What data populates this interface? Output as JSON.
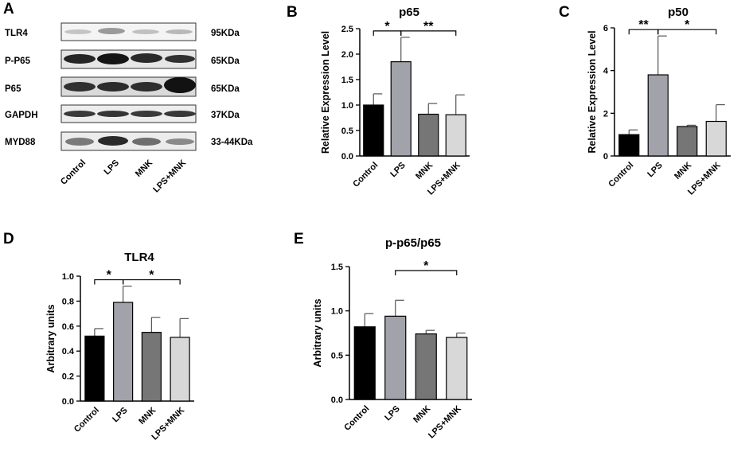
{
  "panels": {
    "A": "A",
    "B": "B",
    "C": "C",
    "D": "D",
    "E": "E"
  },
  "blot": {
    "proteins": [
      {
        "name": "TLR4",
        "size": "95KDa"
      },
      {
        "name": "P-P65",
        "size": "65KDa"
      },
      {
        "name": "P65",
        "size": "65KDa"
      },
      {
        "name": "GAPDH",
        "size": "37KDa"
      },
      {
        "name": "MYD88",
        "size": "33-44KDa"
      }
    ],
    "lanes": [
      "Control",
      "LPS",
      "MNK",
      "LPS+MNK"
    ]
  },
  "colors": {
    "Control": "#000000",
    "LPS": "#a2a2aa",
    "MNK": "#767676",
    "LPS+MNK": "#d8d8d8"
  },
  "chart_data": [
    {
      "id": "B",
      "type": "bar",
      "title": "p65",
      "ylabel": "Relative  Expression Level",
      "xlabel": "",
      "categories": [
        "Control",
        "LPS",
        "MNK",
        "LPS+MNK"
      ],
      "values": [
        1.0,
        1.85,
        0.82,
        0.81
      ],
      "errors": [
        0.22,
        0.48,
        0.21,
        0.39
      ],
      "ylim": [
        0,
        2.5
      ],
      "yticks": [
        "0.0",
        "0.5",
        "1.0",
        "1.5",
        "2.0",
        "2.5"
      ],
      "significance": [
        {
          "from": 0,
          "to": 1,
          "label": "*"
        },
        {
          "from": 1,
          "to": 3,
          "label": "**"
        }
      ]
    },
    {
      "id": "C",
      "type": "bar",
      "title": "p50",
      "ylabel": "Relative  Expression Level",
      "xlabel": "",
      "categories": [
        "Control",
        "LPS",
        "MNK",
        "LPS+MNK"
      ],
      "values": [
        1.0,
        3.8,
        1.38,
        1.62
      ],
      "errors": [
        0.22,
        1.82,
        0.06,
        0.78
      ],
      "ylim": [
        0,
        6
      ],
      "yticks": [
        "0",
        "2",
        "4",
        "6"
      ],
      "significance": [
        {
          "from": 0,
          "to": 1,
          "label": "**"
        },
        {
          "from": 1,
          "to": 3,
          "label": "*"
        }
      ]
    },
    {
      "id": "D",
      "type": "bar",
      "title": "TLR4",
      "ylabel": "Arbitrary units",
      "xlabel": "",
      "categories": [
        "Control",
        "LPS",
        "MNK",
        "LPS+MNK"
      ],
      "values": [
        0.52,
        0.79,
        0.55,
        0.51
      ],
      "errors": [
        0.06,
        0.13,
        0.12,
        0.15
      ],
      "ylim": [
        0,
        1.0
      ],
      "yticks": [
        "0.0",
        "0.2",
        "0.4",
        "0.6",
        "0.8",
        "1.0"
      ],
      "significance": [
        {
          "from": 0,
          "to": 1,
          "label": "*"
        },
        {
          "from": 1,
          "to": 3,
          "label": "*"
        }
      ]
    },
    {
      "id": "E",
      "type": "bar",
      "title": "p-p65/p65",
      "ylabel": "Arbitrary units",
      "xlabel": "",
      "categories": [
        "Control",
        "LPS",
        "MNK",
        "LPS+MNK"
      ],
      "values": [
        0.82,
        0.94,
        0.74,
        0.7
      ],
      "errors": [
        0.15,
        0.18,
        0.04,
        0.05
      ],
      "ylim": [
        0,
        1.5
      ],
      "yticks": [
        "0.0",
        "0.5",
        "1.0",
        "1.5"
      ],
      "significance": [
        {
          "from": 1,
          "to": 3,
          "label": "*"
        }
      ]
    }
  ]
}
